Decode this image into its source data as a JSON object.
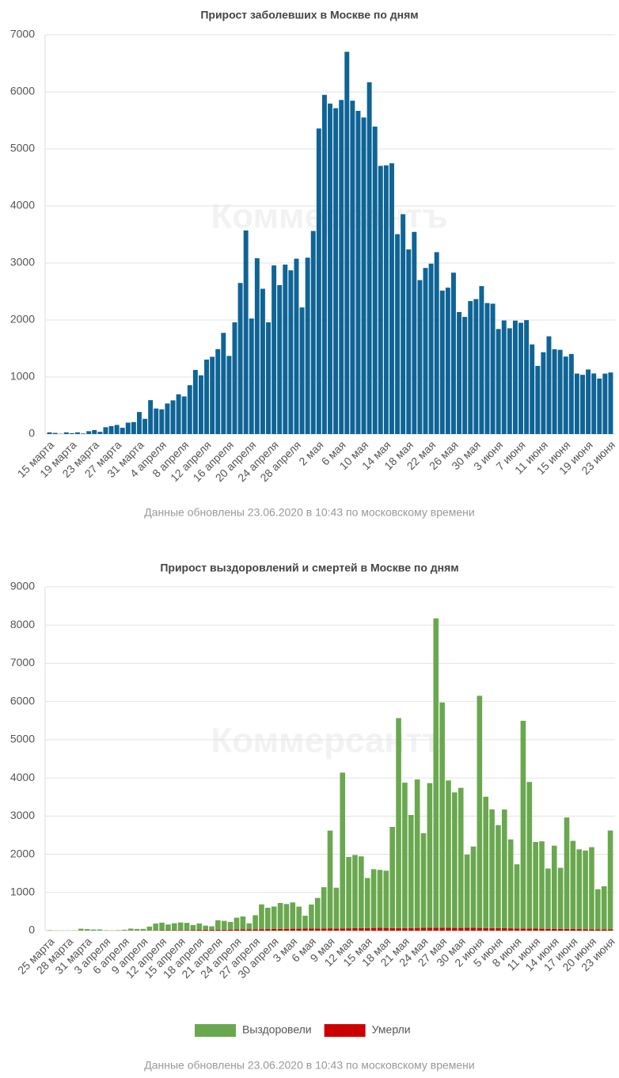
{
  "chart_data": [
    {
      "type": "bar",
      "title": "Прирост заболевших в Москве по дням",
      "watermark": "Коммерсантъ",
      "note": "Данные обновлены 23.06.2020 в 10:43 по московскому времени",
      "categories": [
        "15 марта",
        null,
        null,
        null,
        "19 марта",
        null,
        null,
        null,
        "23 марта",
        null,
        null,
        null,
        "27 марта",
        null,
        null,
        null,
        "31 марта",
        null,
        null,
        null,
        "4 апреля",
        null,
        null,
        null,
        "8 апреля",
        null,
        null,
        null,
        "12 апреля",
        null,
        null,
        null,
        "16 апреля",
        null,
        null,
        null,
        "20 апреля",
        null,
        null,
        null,
        "24 апреля",
        null,
        null,
        null,
        "28 апреля",
        null,
        null,
        null,
        "2 мая",
        null,
        null,
        null,
        "6 мая",
        null,
        null,
        null,
        "10 мая",
        null,
        null,
        null,
        "14 мая",
        null,
        null,
        null,
        "18 мая",
        null,
        null,
        null,
        "22 мая",
        null,
        null,
        null,
        "26 мая",
        null,
        null,
        null,
        "30 мая",
        null,
        null,
        null,
        "3 июня",
        null,
        null,
        null,
        "7 июня",
        null,
        null,
        null,
        "11 июня",
        null,
        null,
        null,
        "15 июня",
        null,
        null,
        null,
        "19 июня",
        null,
        null,
        null,
        "23 июня"
      ],
      "series": [
        {
          "name": "Заболевшие",
          "color": "#0f6496",
          "values": [
            30,
            20,
            5,
            30,
            15,
            30,
            10,
            50,
            70,
            40,
            120,
            140,
            160,
            110,
            200,
            210,
            387,
            267,
            595,
            448,
            434,
            536,
            591,
            697,
            660,
            857,
            1124,
            1030,
            1306,
            1355,
            1489,
            1774,
            1370,
            1959,
            2649,
            3570,
            2026,
            3083,
            2548,
            1959,
            2957,
            2612,
            2971,
            2871,
            3075,
            2220,
            3093,
            3561,
            5358,
            5948,
            5795,
            5714,
            5858,
            6703,
            5846,
            5667,
            5551,
            6169,
            5392,
            4703,
            4712,
            4748,
            3505,
            3855,
            3238,
            3545,
            2699,
            2913,
            2988,
            3190,
            2516,
            2567,
            2830,
            2140,
            2054,
            2332,
            2367,
            2595,
            2297,
            2286,
            1842,
            1992,
            1855,
            1989,
            1951,
            1998,
            1572,
            1195,
            1435,
            1714,
            1486,
            1477,
            1359,
            1404,
            1061,
            1039,
            1132,
            1063,
            973,
            1060,
            1080
          ]
        }
      ],
      "ylim": [
        0,
        7000
      ],
      "yticks": [
        0,
        1000,
        2000,
        3000,
        4000,
        5000,
        6000,
        7000
      ],
      "grid": true
    },
    {
      "type": "stacked_bar",
      "title": "Прирост выздоровлений и смертей в Москве по дням",
      "watermark": "Коммерсантъ",
      "note": "Данные обновлены 23.06.2020 в 10:43 по московскому времени",
      "legend": "bottom",
      "categories": [
        "25 марта",
        null,
        null,
        "28 марта",
        null,
        null,
        "31 марта",
        null,
        null,
        "3 апреля",
        null,
        null,
        "6 апреля",
        null,
        null,
        "9 апреля",
        null,
        null,
        "12 апреля",
        null,
        null,
        "15 апреля",
        null,
        null,
        "18 апреля",
        null,
        null,
        "21 апреля",
        null,
        null,
        "24 апреля",
        null,
        null,
        "27 апреля",
        null,
        null,
        "30 апреля",
        null,
        null,
        "3 мая",
        null,
        null,
        "6 мая",
        null,
        null,
        "9 мая",
        null,
        null,
        "12 мая",
        null,
        null,
        "15 мая",
        null,
        null,
        "18 мая",
        null,
        null,
        "21 мая",
        null,
        null,
        "24 мая",
        null,
        null,
        "27 мая",
        null,
        null,
        "30 мая",
        null,
        null,
        "2 июня",
        null,
        null,
        "5 июня",
        null,
        null,
        "8 июня",
        null,
        null,
        "11 июня",
        null,
        null,
        "14 июня",
        null,
        null,
        "17 июня",
        null,
        null,
        "20 июня",
        null,
        null,
        "23 июня"
      ],
      "series": [
        {
          "name": "Умерли",
          "color": "#cc0000",
          "values": [
            0,
            0,
            0,
            0,
            1,
            1,
            1,
            1,
            2,
            1,
            2,
            3,
            4,
            5,
            5,
            6,
            6,
            7,
            10,
            12,
            14,
            14,
            15,
            18,
            20,
            22,
            24,
            23,
            26,
            28,
            30,
            32,
            33,
            35,
            38,
            40,
            42,
            45,
            48,
            50,
            50,
            52,
            55,
            56,
            58,
            60,
            55,
            58,
            60,
            62,
            65,
            68,
            70,
            72,
            70,
            68,
            65,
            66,
            68,
            70,
            72,
            74,
            76,
            75,
            73,
            71,
            70,
            72,
            74,
            70,
            68,
            66,
            64,
            62,
            60,
            58,
            56,
            54,
            52,
            50,
            48,
            46,
            45,
            44,
            42,
            40,
            38,
            36,
            35,
            34,
            33
          ]
        },
        {
          "name": "Выздоровели",
          "color": "#6aa84f",
          "values": [
            10,
            5,
            5,
            5,
            5,
            50,
            40,
            30,
            30,
            10,
            5,
            10,
            20,
            50,
            40,
            40,
            100,
            180,
            200,
            150,
            180,
            200,
            190,
            130,
            170,
            110,
            90,
            250,
            230,
            200,
            310,
            340,
            160,
            370,
            650,
            560,
            590,
            680,
            650,
            690,
            580,
            340,
            630,
            800,
            1080,
            2560,
            1070,
            4080,
            1870,
            1920,
            1880,
            1310,
            1540,
            1520,
            1500,
            2650,
            5500,
            3810,
            2960,
            3890,
            2480,
            3790,
            8100,
            5900,
            3860,
            3550,
            3670,
            1920,
            2130,
            6080,
            3440,
            3110,
            2700,
            3110,
            2330,
            1680,
            5440,
            3840,
            2270,
            2290,
            1580,
            2180,
            1600,
            2920,
            2310,
            2090,
            2060,
            2150,
            1050,
            1130,
            2590
          ]
        }
      ],
      "ylim": [
        0,
        9000
      ],
      "yticks": [
        0,
        1000,
        2000,
        3000,
        4000,
        5000,
        6000,
        7000,
        8000,
        9000
      ],
      "grid": true
    }
  ]
}
